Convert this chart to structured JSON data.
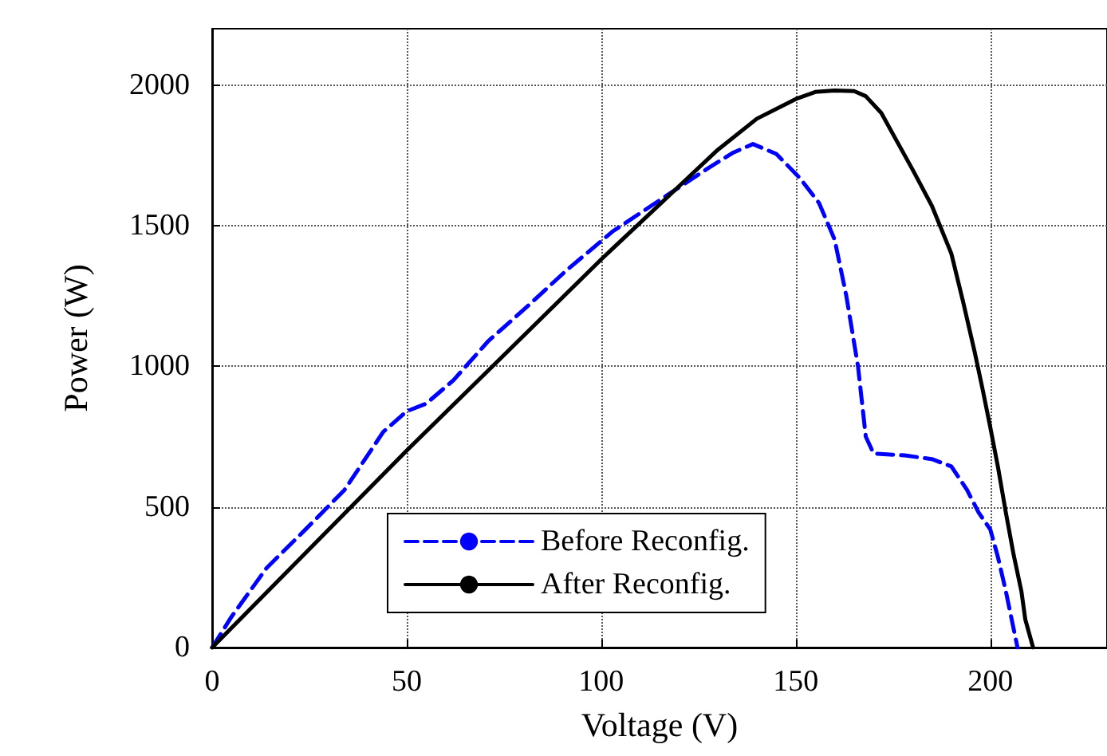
{
  "chart_data": {
    "type": "line",
    "xlabel": "Voltage (V)",
    "ylabel": "Power (W)",
    "xlim": [
      0,
      230
    ],
    "xticks": [
      0,
      50,
      100,
      150,
      200
    ],
    "ylim": [
      0,
      2200
    ],
    "yticks": [
      0,
      500,
      1000,
      1500,
      2000
    ],
    "grid": true,
    "legend": "bottom",
    "marker": "none",
    "series": [
      {
        "name": "Before Reconfig.",
        "color": "#0000ff",
        "line_style": "dashed",
        "x": [
          0,
          5,
          14,
          24,
          34,
          44,
          50,
          55,
          62,
          71,
          80,
          91,
          103,
          115,
          127,
          134,
          139,
          145,
          151,
          156,
          160,
          163,
          166,
          168,
          170,
          178,
          185,
          190,
          194,
          197,
          200,
          202,
          204,
          205.5,
          207
        ],
        "values": [
          0,
          110,
          283,
          420,
          560,
          767,
          840,
          867,
          950,
          1090,
          1200,
          1340,
          1480,
          1590,
          1700,
          1760,
          1790,
          1755,
          1670,
          1580,
          1450,
          1250,
          1000,
          750,
          690,
          683,
          670,
          644,
          561,
          480,
          420,
          320,
          200,
          100,
          0
        ]
      },
      {
        "name": "After Reconfig.",
        "color": "#000000",
        "line_style": "solid",
        "x": [
          0,
          25,
          50,
          75,
          100,
          120,
          130,
          140,
          150,
          155,
          160,
          165,
          168,
          172,
          176,
          180,
          185,
          190,
          193,
          196,
          198,
          200,
          202,
          204,
          206,
          208,
          209,
          211
        ],
        "values": [
          0,
          350,
          700,
          1040,
          1380,
          1640,
          1770,
          1880,
          1950,
          1975,
          1980,
          1978,
          1960,
          1900,
          1800,
          1700,
          1570,
          1400,
          1230,
          1050,
          920,
          783,
          640,
          480,
          330,
          200,
          100,
          0
        ]
      }
    ]
  }
}
